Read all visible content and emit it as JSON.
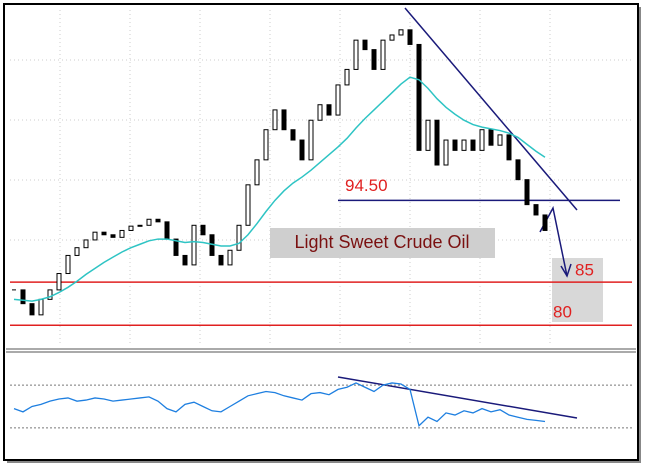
{
  "chart_data": {
    "type": "candlestick",
    "title": "Light Sweet Crude Oil",
    "close": [
      84.1,
      82.5,
      81.2,
      83.0,
      84.1,
      86.0,
      88.1,
      89.0,
      89.9,
      90.8,
      90.5,
      90.2,
      91.0,
      91.5,
      91.6,
      92.3,
      92.0,
      90.0,
      88.1,
      87.0,
      91.6,
      90.5,
      88.1,
      87.0,
      88.7,
      91.6,
      96.3,
      99.2,
      102.7,
      105.0,
      102.7,
      101.5,
      99.2,
      103.8,
      105.6,
      104.4,
      107.9,
      109.7,
      113.1,
      112.0,
      109.7,
      113.1,
      113.7,
      114.3,
      112.6,
      100.3,
      103.8,
      98.6,
      101.5,
      100.3,
      101.5,
      100.3,
      102.7,
      100.9,
      102.1,
      99.2,
      96.9,
      94.0,
      92.8,
      91.0
    ],
    "ma": {
      "color": "#2ec4c4",
      "values": [
        83.0,
        82.9,
        82.8,
        83.0,
        83.3,
        83.8,
        84.4,
        85.1,
        85.9,
        86.6,
        87.3,
        87.9,
        88.5,
        89.0,
        89.4,
        89.8,
        90.0,
        90.0,
        89.8,
        89.6,
        89.7,
        89.6,
        89.4,
        89.2,
        89.2,
        89.5,
        90.5,
        91.8,
        93.2,
        94.5,
        95.6,
        96.5,
        97.2,
        98.0,
        98.9,
        99.8,
        100.7,
        101.7,
        102.9,
        104.0,
        105.0,
        106.0,
        107.0,
        108.0,
        108.8,
        108.5,
        107.5,
        106.3,
        105.3,
        104.5,
        103.8,
        103.3,
        103.0,
        102.8,
        102.6,
        102.3,
        101.8,
        101.0,
        100.2,
        99.5
      ]
    },
    "ylim": [
      77.7,
      116.6
    ],
    "resistance": {
      "value": 94.5,
      "label": "94.50",
      "color": "#1a1a7a",
      "label_color": "#e02020"
    },
    "targets": [
      85,
      80
    ],
    "target_color": "#e02020",
    "oscillator": {
      "color": "#1e7fe0",
      "ylim": [
        0,
        100
      ],
      "levels": [
        70,
        30
      ],
      "values": [
        48,
        45,
        50,
        52,
        55,
        57,
        58,
        55,
        56,
        58,
        57,
        55,
        56,
        57,
        58,
        59,
        55,
        48,
        45,
        52,
        54,
        50,
        46,
        45,
        50,
        55,
        60,
        62,
        64,
        63,
        60,
        58,
        56,
        62,
        63,
        61,
        66,
        68,
        72,
        68,
        64,
        70,
        72,
        71,
        66,
        32,
        40,
        36,
        44,
        42,
        46,
        44,
        48,
        45,
        47,
        42,
        40,
        38,
        37,
        36
      ]
    }
  }
}
